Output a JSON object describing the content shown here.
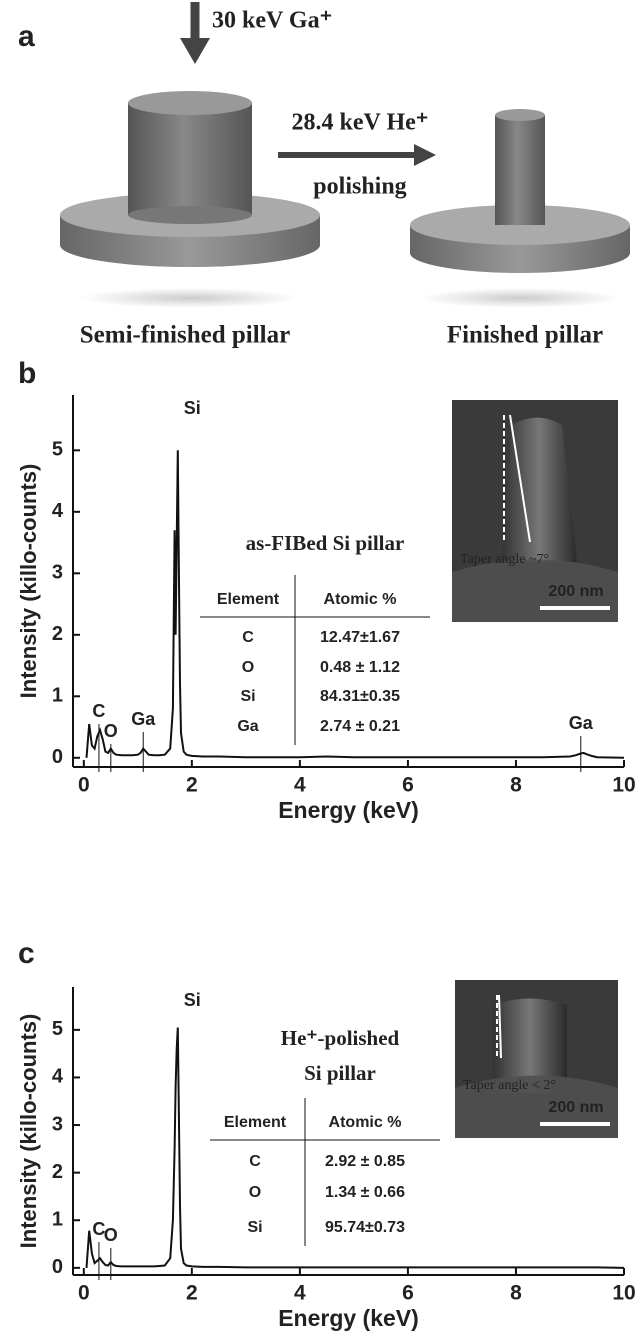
{
  "panel_a": {
    "label": "a",
    "ion_beam": "30 keV Ga⁺",
    "polish_beam": "28.4 keV He⁺",
    "polish_text": "polishing",
    "left_caption": "Semi-finished pillar",
    "right_caption": "Finished pillar"
  },
  "chart_data": [
    {
      "type": "line",
      "panel_label": "b",
      "x_label": "Energy (keV)",
      "y_label": "Intensity (killo-counts)",
      "color": "#111",
      "xlim": [
        -0.2,
        10
      ],
      "ylim": [
        -0.15,
        5.9
      ],
      "xticks": [
        0,
        2,
        4,
        6,
        8,
        10
      ],
      "yticks": [
        0,
        1,
        2,
        3,
        4,
        5
      ],
      "x": [
        0.05,
        0.1,
        0.15,
        0.2,
        0.25,
        0.3,
        0.35,
        0.4,
        0.45,
        0.5,
        0.55,
        0.6,
        0.7,
        0.8,
        0.9,
        1.0,
        1.05,
        1.1,
        1.15,
        1.2,
        1.3,
        1.4,
        1.5,
        1.6,
        1.65,
        1.68,
        1.7,
        1.72,
        1.74,
        1.76,
        1.78,
        1.8,
        1.85,
        1.9,
        2.0,
        2.2,
        2.5,
        3,
        3.5,
        4,
        4.5,
        5,
        5.5,
        6,
        6.5,
        7,
        7.5,
        8,
        8.5,
        9,
        9.1,
        9.2,
        9.25,
        9.3,
        9.4,
        9.5,
        10
      ],
      "values": [
        0,
        0.55,
        0.2,
        0.15,
        0.35,
        0.45,
        0.3,
        0.1,
        0.08,
        0.15,
        0.08,
        0.05,
        0.04,
        0.04,
        0.04,
        0.05,
        0.08,
        0.15,
        0.1,
        0.05,
        0.04,
        0.04,
        0.05,
        0.15,
        0.8,
        3.7,
        2.0,
        3.5,
        5.0,
        3.0,
        1.2,
        0.4,
        0.1,
        0.05,
        0.03,
        0.02,
        0.02,
        0.01,
        0.01,
        0.01,
        0.02,
        0.01,
        0.01,
        0.01,
        0.01,
        0.01,
        0.01,
        0.01,
        0.01,
        0.02,
        0.04,
        0.07,
        0.08,
        0.06,
        0.03,
        0.01,
        0
      ],
      "annotations": [
        "Si",
        "C",
        "O",
        "Ga",
        "Ga"
      ],
      "inset": {
        "title": [
          "as-FIBed Si pillar"
        ],
        "table": {
          "headers": [
            "Element",
            "Atomic %"
          ],
          "rows": [
            [
              "C",
              "12.47±1.67"
            ],
            [
              "O",
              "0.48 ± 1.12"
            ],
            [
              "Si",
              "84.31±0.35"
            ],
            [
              "Ga",
              "2.74 ± 0.21"
            ]
          ]
        },
        "image_caption": "Taper angle ~7°",
        "scale_bar": "200 nm"
      }
    },
    {
      "type": "line",
      "panel_label": "c",
      "x_label": "Energy (keV)",
      "y_label": "Intensity (killo-counts)",
      "color": "#111",
      "xlim": [
        -0.2,
        10
      ],
      "ylim": [
        -0.15,
        5.9
      ],
      "xticks": [
        0,
        2,
        4,
        6,
        8,
        10
      ],
      "yticks": [
        0,
        1,
        2,
        3,
        4,
        5
      ],
      "x": [
        0.05,
        0.1,
        0.15,
        0.2,
        0.25,
        0.3,
        0.35,
        0.4,
        0.45,
        0.5,
        0.55,
        0.6,
        0.7,
        0.8,
        0.9,
        1.0,
        1.05,
        1.1,
        1.15,
        1.2,
        1.3,
        1.4,
        1.5,
        1.6,
        1.65,
        1.68,
        1.7,
        1.72,
        1.74,
        1.76,
        1.78,
        1.8,
        1.85,
        1.9,
        2.0,
        2.2,
        2.5,
        3,
        3.5,
        4,
        4.5,
        5,
        5.5,
        6,
        6.5,
        7,
        7.5,
        8,
        8.5,
        9,
        9.1,
        9.2,
        9.25,
        9.3,
        9.4,
        9.5,
        10
      ],
      "values": [
        0,
        0.78,
        0.3,
        0.1,
        0.15,
        0.2,
        0.12,
        0.06,
        0.05,
        0.12,
        0.06,
        0.04,
        0.03,
        0.03,
        0.03,
        0.03,
        0.03,
        0.03,
        0.03,
        0.03,
        0.03,
        0.04,
        0.05,
        0.2,
        1.0,
        2.5,
        3.8,
        4.6,
        5.05,
        3.2,
        1.3,
        0.4,
        0.1,
        0.05,
        0.03,
        0.02,
        0.02,
        0.01,
        0.01,
        0.01,
        0.01,
        0.01,
        0.01,
        0.01,
        0.01,
        0.01,
        0.01,
        0.01,
        0.01,
        0.01,
        0.01,
        0.01,
        0.01,
        0.01,
        0.01,
        0.01,
        0
      ],
      "annotations": [
        "Si",
        "C",
        "O"
      ],
      "inset": {
        "title": [
          "He⁺-polished",
          "Si pillar"
        ],
        "table": {
          "headers": [
            "Element",
            "Atomic %"
          ],
          "rows": [
            [
              "C",
              "2.92 ± 0.85"
            ],
            [
              "O",
              "1.34 ± 0.66"
            ],
            [
              "Si",
              "95.74±0.73"
            ]
          ]
        },
        "image_caption": "Taper angle < 2°",
        "scale_bar": "200 nm"
      }
    }
  ]
}
